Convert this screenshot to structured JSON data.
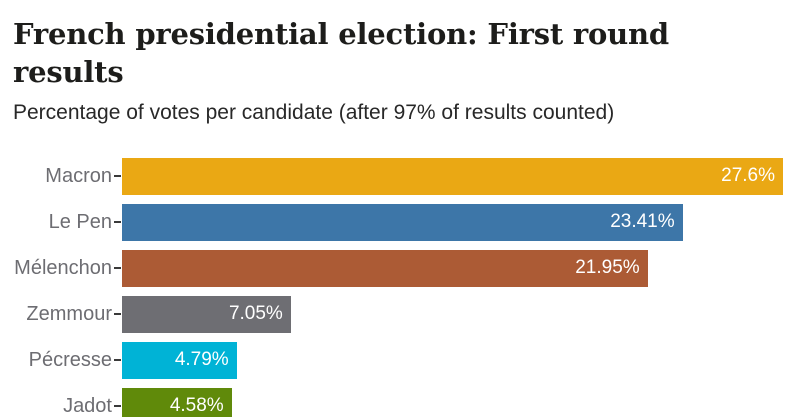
{
  "header": {
    "title": "French presidential election: First round results",
    "subtitle": "Percentage of votes per candidate (after 97% of results counted)"
  },
  "chart_data": {
    "type": "bar",
    "orientation": "horizontal",
    "title": "French presidential election: First round results",
    "subtitle": "Percentage of votes per candidate (after 97% of results counted)",
    "categories": [
      "Macron",
      "Le Pen",
      "Mélenchon",
      "Zemmour",
      "Pécresse",
      "Jadot"
    ],
    "values": [
      27.6,
      23.41,
      21.95,
      7.05,
      4.79,
      4.58
    ],
    "value_labels": [
      "27.6%",
      "23.41%",
      "21.95%",
      "7.05%",
      "4.79%",
      "4.58%"
    ],
    "bar_colors": [
      "#eaa814",
      "#3d76a8",
      "#ac5b35",
      "#6e6e73",
      "#00b3d6",
      "#608a0a"
    ],
    "xlabel": "",
    "ylabel": "",
    "xlim": [
      0,
      27.6
    ],
    "grid": false,
    "legend": false,
    "value_labels_position": "inside-end",
    "value_label_color": "#ffffff",
    "category_label_color": "#6d6d72",
    "tick_color": "#3a3a3a"
  }
}
